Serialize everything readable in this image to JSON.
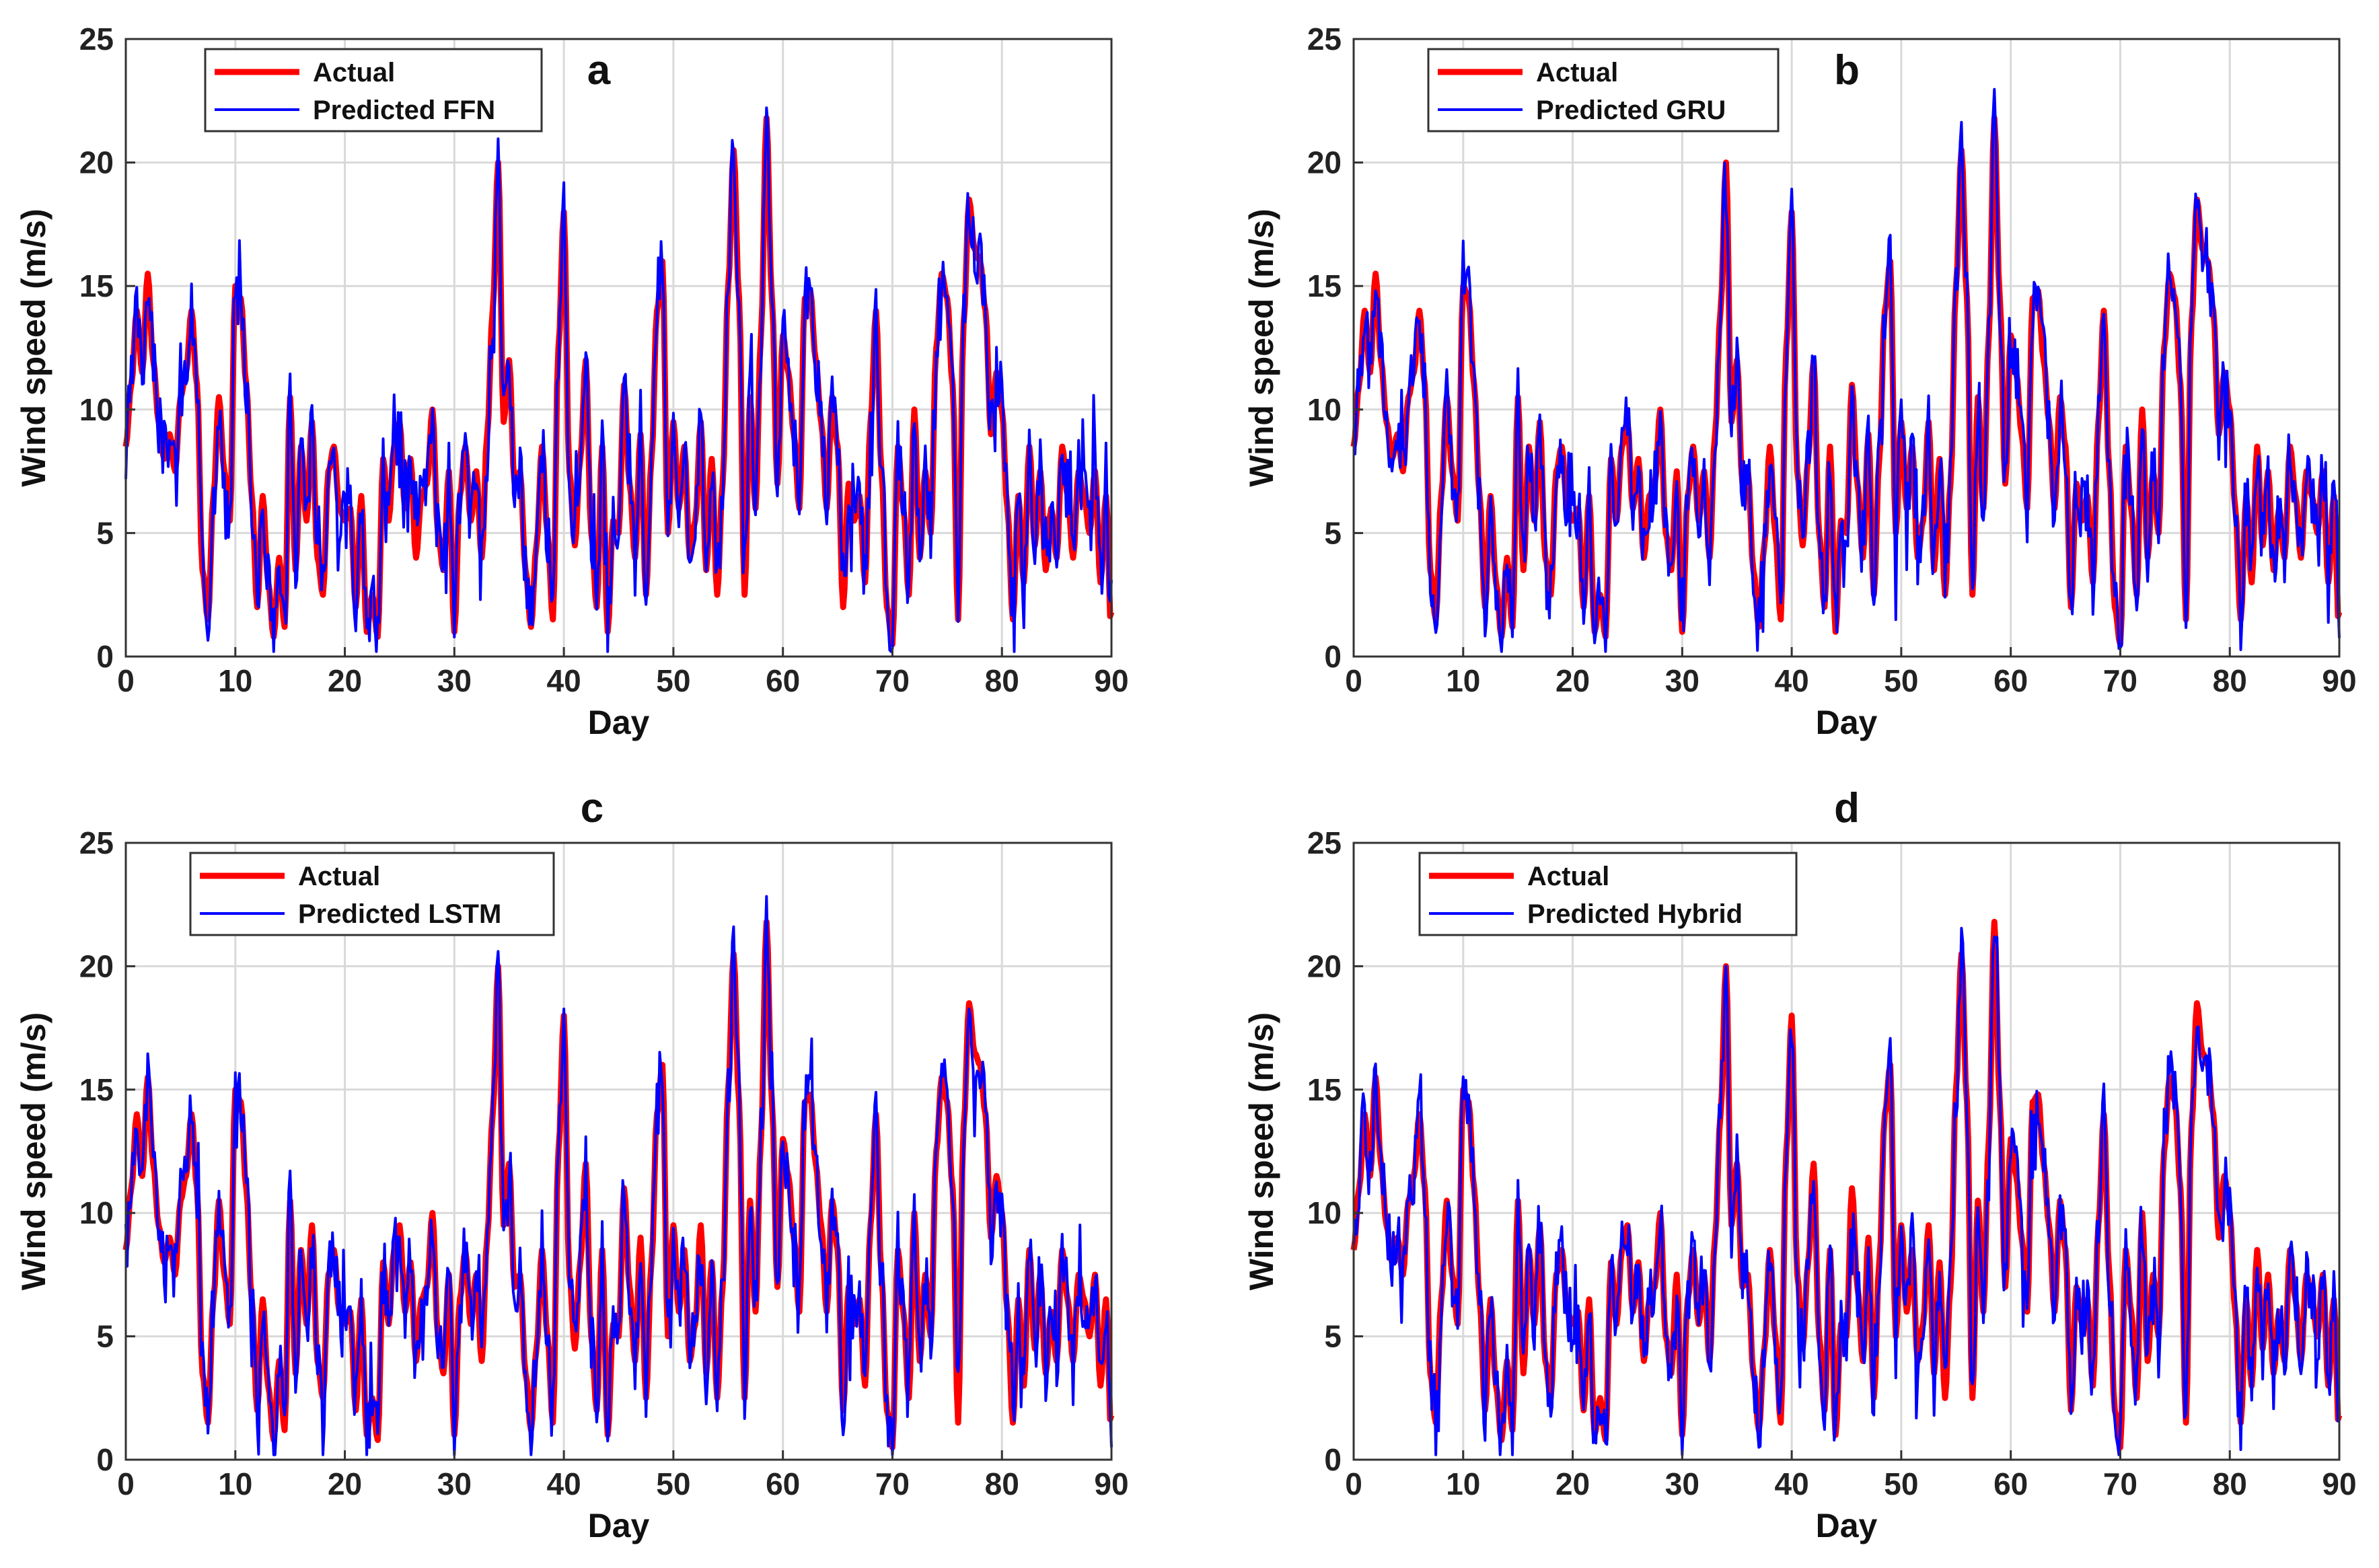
{
  "chart_data": [
    {
      "type": "line",
      "panel_label": "a",
      "xlabel": "Day",
      "ylabel": "Wind speed (m/s)",
      "xlim": [
        0,
        90
      ],
      "ylim": [
        0,
        25
      ],
      "xticks": [
        0,
        10,
        20,
        30,
        40,
        50,
        60,
        70,
        80,
        90
      ],
      "yticks": [
        0,
        5,
        10,
        15,
        20,
        25
      ],
      "grid": true,
      "legend_position": "top-left",
      "series": [
        {
          "name": "Actual",
          "color": "#ff0000"
        },
        {
          "name": "Predicted FFN",
          "color": "#0000ff"
        }
      ]
    },
    {
      "type": "line",
      "panel_label": "b",
      "xlabel": "Day",
      "ylabel": "Wind speed (m/s)",
      "xlim": [
        0,
        90
      ],
      "ylim": [
        0,
        25
      ],
      "xticks": [
        0,
        10,
        20,
        30,
        40,
        50,
        60,
        70,
        80,
        90
      ],
      "yticks": [
        0,
        5,
        10,
        15,
        20,
        25
      ],
      "grid": true,
      "legend_position": "top-left",
      "series": [
        {
          "name": "Actual",
          "color": "#ff0000"
        },
        {
          "name": "Predicted GRU",
          "color": "#0000ff"
        }
      ]
    },
    {
      "type": "line",
      "panel_label": "c",
      "xlabel": "Day",
      "ylabel": "Wind speed (m/s)",
      "xlim": [
        0,
        90
      ],
      "ylim": [
        0,
        25
      ],
      "xticks": [
        0,
        10,
        20,
        30,
        40,
        50,
        60,
        70,
        80,
        90
      ],
      "yticks": [
        0,
        5,
        10,
        15,
        20,
        25
      ],
      "grid": true,
      "legend_position": "top-left",
      "series": [
        {
          "name": "Actual",
          "color": "#ff0000"
        },
        {
          "name": "Predicted LSTM",
          "color": "#0000ff"
        }
      ]
    },
    {
      "type": "line",
      "panel_label": "d",
      "xlabel": "Day",
      "ylabel": "Wind speed (m/s)",
      "xlim": [
        0,
        90
      ],
      "ylim": [
        0,
        25
      ],
      "xticks": [
        0,
        10,
        20,
        30,
        40,
        50,
        60,
        70,
        80,
        90
      ],
      "yticks": [
        0,
        5,
        10,
        15,
        20,
        25
      ],
      "grid": true,
      "legend_position": "top-left",
      "series": [
        {
          "name": "Actual",
          "color": "#ff0000"
        },
        {
          "name": "Predicted Hybrid",
          "color": "#0000ff"
        }
      ]
    }
  ],
  "shared_series": {
    "x": [
      0,
      0.5,
      1,
      1.5,
      2,
      2.5,
      3,
      3.5,
      4,
      4.5,
      5,
      5.5,
      6,
      6.5,
      7,
      7.5,
      8,
      8.5,
      9,
      9.5,
      10,
      10.5,
      11,
      11.5,
      12,
      12.5,
      13,
      13.5,
      14,
      14.5,
      15,
      15.5,
      16,
      16.5,
      17,
      17.5,
      18,
      18.5,
      19,
      19.5,
      20,
      20.5,
      21,
      21.5,
      22,
      22.5,
      23,
      23.5,
      24,
      24.5,
      25,
      25.5,
      26,
      26.5,
      27,
      27.5,
      28,
      28.5,
      29,
      29.5,
      30,
      30.5,
      31,
      31.5,
      32,
      32.5,
      33,
      33.5,
      34,
      34.5,
      35,
      35.5,
      36,
      36.5,
      37,
      37.5,
      38,
      38.5,
      39,
      39.5,
      40,
      40.5,
      41,
      41.5,
      42,
      42.5,
      43,
      43.5,
      44,
      44.5,
      45,
      45.5,
      46,
      46.5,
      47,
      47.5,
      48,
      48.5,
      49,
      49.5,
      50,
      50.5,
      51,
      51.5,
      52,
      52.5,
      53,
      53.5,
      54,
      54.5,
      55,
      55.5,
      56,
      56.5,
      57,
      57.5,
      58,
      58.5,
      59,
      59.5,
      60,
      60.5,
      61,
      61.5,
      62,
      62.5,
      63,
      63.5,
      64,
      64.5,
      65,
      65.5,
      66,
      66.5,
      67,
      67.5,
      68,
      68.5,
      69,
      69.5,
      70,
      70.5,
      71,
      71.5,
      72,
      72.5,
      73,
      73.5,
      74,
      74.5,
      75,
      75.5,
      76,
      76.5,
      77,
      77.5,
      78,
      78.5,
      79,
      79.5,
      80,
      80.5,
      81,
      81.5,
      82,
      82.5,
      83,
      83.5,
      84,
      84.5,
      85,
      85.5,
      86,
      86.5,
      87,
      87.5,
      88,
      88.5,
      89,
      89.5,
      90
    ],
    "actual": [
      8.5,
      11.0,
      14.0,
      11.5,
      15.5,
      12.0,
      9.5,
      8.0,
      9.0,
      7.5,
      10.5,
      11.5,
      14.0,
      11.0,
      3.5,
      1.5,
      6.5,
      10.5,
      7.5,
      5.5,
      15.0,
      14.5,
      11.0,
      6.5,
      2.0,
      6.5,
      3.0,
      0.8,
      4.0,
      1.2,
      10.5,
      3.5,
      8.5,
      5.5,
      9.5,
      4.0,
      2.5,
      7.5,
      8.5,
      6.0,
      5.5,
      6.0,
      2.0,
      6.5,
      1.0,
      2.5,
      0.8,
      8.0,
      5.5,
      8.5,
      9.5,
      6.0,
      8.0,
      4.0,
      6.5,
      7.0,
      10.0,
      5.0,
      3.5,
      7.5,
      1.0,
      6.5,
      8.5,
      5.5,
      7.5,
      4.0,
      9.0,
      14.0,
      20.0,
      9.5,
      12.0,
      7.0,
      7.5,
      3.5,
      1.2,
      4.5,
      8.5,
      5.0,
      1.5,
      12.5,
      18.0,
      7.5,
      4.5,
      8.0,
      12.0,
      5.0,
      2.0,
      8.5,
      1.0,
      5.5,
      5.0,
      11.0,
      7.0,
      4.0,
      9.0,
      2.5,
      8.0,
      14.0,
      16.0,
      5.0,
      9.5,
      6.0,
      8.5,
      4.0,
      5.5,
      9.5,
      3.5,
      8.0,
      2.5,
      7.0,
      15.0,
      20.5,
      14.5,
      2.5,
      10.5,
      6.0,
      13.0,
      21.8,
      14.5,
      7.0,
      13.0,
      11.5,
      9.0,
      6.0,
      14.5,
      14.8,
      12.0,
      9.5,
      6.0,
      10.5,
      8.5,
      2.0,
      7.0,
      5.5,
      6.5,
      3.0,
      9.5,
      14.0,
      7.5,
      2.0,
      0.5,
      8.5,
      6.0,
      2.5,
      10.0,
      4.0,
      7.5,
      5.0,
      12.5,
      15.5,
      14.5,
      11.0,
      1.5,
      13.5,
      18.5,
      16.5,
      16.0,
      14.0,
      9.0,
      11.5,
      10.0,
      6.0,
      1.5,
      6.5,
      3.0,
      8.5,
      4.5,
      7.5,
      3.5,
      6.0,
      4.0,
      8.5,
      6.5,
      4.0,
      7.5,
      6.5,
      5.0,
      7.5,
      3.0,
      6.5,
      0.8,
      4.5,
      1.8
    ],
    "noise_seeds": {
      "a": 3,
      "b": 7,
      "c": 11,
      "d": 19
    }
  }
}
